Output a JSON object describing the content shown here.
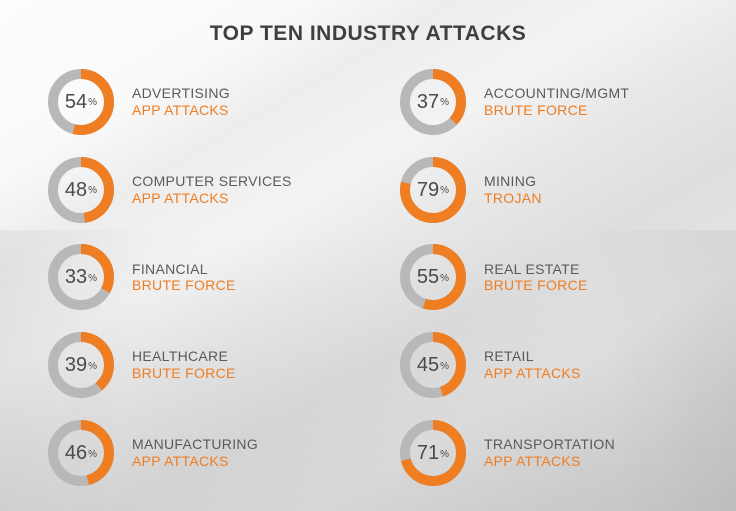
{
  "title": "TOP TEN INDUSTRY ATTACKS",
  "style": {
    "donut": {
      "track_color": "#b8b8b8",
      "value_color": "#ef7d22",
      "hole_color": "#ffffff",
      "stroke_width": 10,
      "radius": 28,
      "size": 66,
      "start_angle_deg": -90
    },
    "text": {
      "title_color": "#3f3f3f",
      "industry_color": "#5a5a5a",
      "attack_color": "#ef7d22",
      "percent_color": "#4a4a4a",
      "title_fontsize": 21,
      "label_fontsize": 14,
      "percent_fontsize": 20
    }
  },
  "items": [
    {
      "percent": 54,
      "industry": "ADVERTISING",
      "attack": "APP ATTACKS"
    },
    {
      "percent": 37,
      "industry": "ACCOUNTING/MGMT",
      "attack": "BRUTE FORCE"
    },
    {
      "percent": 48,
      "industry": "COMPUTER SERVICES",
      "attack": "APP ATTACKS"
    },
    {
      "percent": 79,
      "industry": "MINING",
      "attack": "TROJAN"
    },
    {
      "percent": 33,
      "industry": "FINANCIAL",
      "attack": "BRUTE FORCE"
    },
    {
      "percent": 55,
      "industry": "REAL ESTATE",
      "attack": "BRUTE FORCE"
    },
    {
      "percent": 39,
      "industry": "HEALTHCARE",
      "attack": "BRUTE FORCE"
    },
    {
      "percent": 45,
      "industry": "RETAIL",
      "attack": "APP ATTACKS"
    },
    {
      "percent": 46,
      "industry": "MANUFACTURING",
      "attack": "APP ATTACKS"
    },
    {
      "percent": 71,
      "industry": "TRANSPORTATION",
      "attack": "APP ATTACKS"
    }
  ]
}
